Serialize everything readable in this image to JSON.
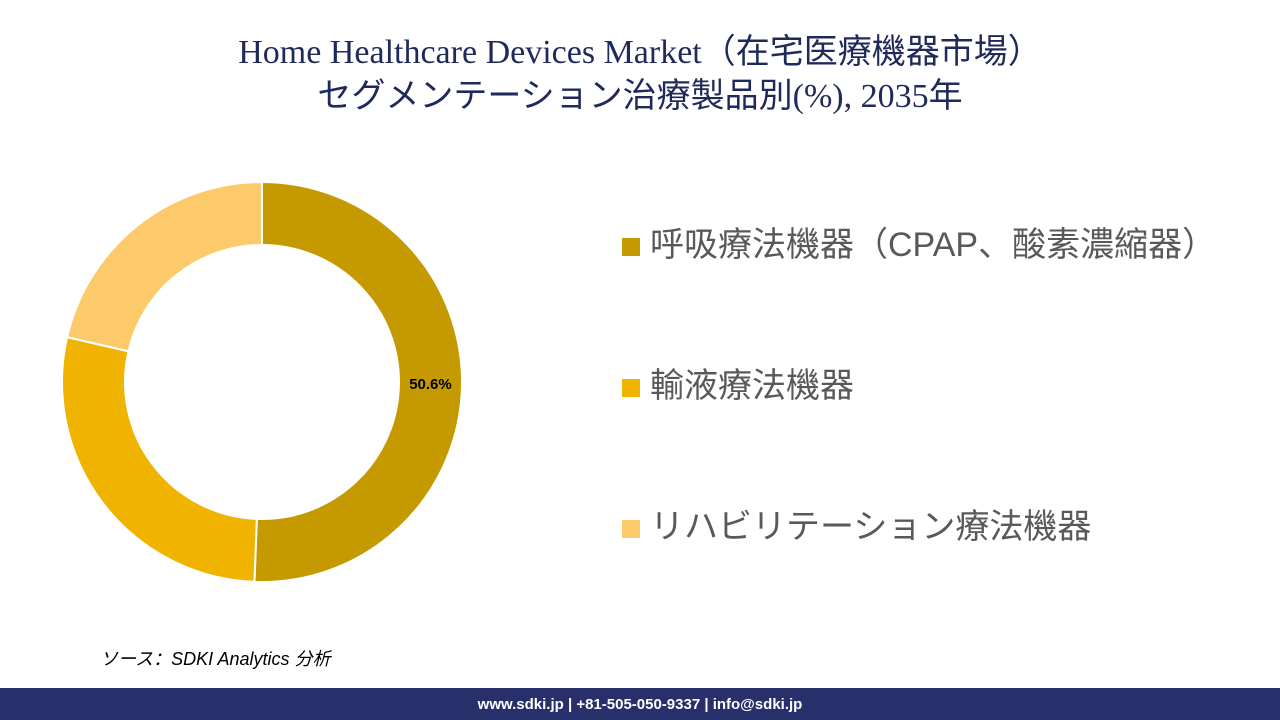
{
  "chart_data": {
    "type": "donut",
    "title": [
      "Home Healthcare Devices Market（在宅医療機器市場）",
      "セグメンテーション治療製品別(%), 2035年"
    ],
    "categories": [
      "呼吸療法機器（CPAP、酸素濃縮器）",
      "輸液療法機器",
      "リハビリテーション療法機器"
    ],
    "values": [
      50.6,
      28.0,
      21.4
    ],
    "value_labels": [
      "50.6%",
      null,
      null
    ],
    "colors": [
      "#c49a00",
      "#f0b400",
      "#fcc96b"
    ],
    "source": "ソース：SDKI Analytics 分析",
    "footer": "www.sdki.jp | +81-505-050-9337 | info@sdki.jp"
  }
}
